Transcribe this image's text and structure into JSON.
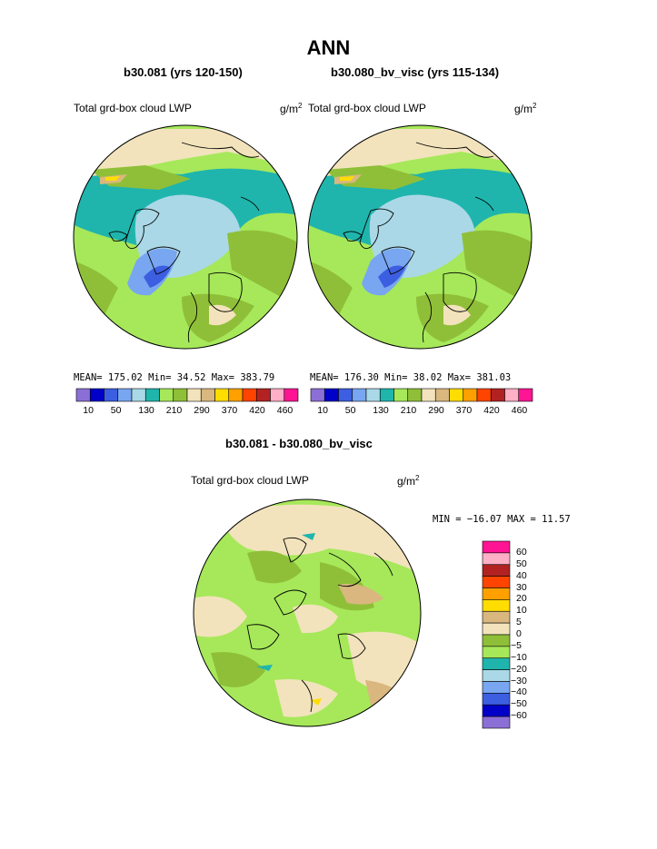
{
  "figure": {
    "title": "ANN",
    "variable_label": "Total grd-box cloud LWP",
    "units_base": "g/m",
    "units_exp": "2",
    "diff_title": "b30.081 - b30.080_bv_visc"
  },
  "panels": [
    {
      "subtitle": "b30.081 (yrs 120-150)",
      "stats": "MEAN= 175.02  Min=  34.52  Max= 383.79"
    },
    {
      "subtitle": "b30.080_bv_visc (yrs 115-134)",
      "stats": "MEAN= 176.30  Min=  38.02  Max= 381.03"
    }
  ],
  "top_colorbar": {
    "colors": [
      "#8c6fd6",
      "#0000c8",
      "#3c5ee0",
      "#78a6f0",
      "#aad8e6",
      "#1fb5ad",
      "#a6e85a",
      "#8fbf38",
      "#f2e3bc",
      "#d9b77e",
      "#ffdd00",
      "#ffa000",
      "#ff4400",
      "#b22222",
      "#ffafc6",
      "#ff1493"
    ],
    "ticks": [
      "10",
      "50",
      "130",
      "210",
      "290",
      "370",
      "420",
      "460"
    ]
  },
  "diff": {
    "minmax_text": "MIN = −16.07 MAX =  11.57",
    "colors": [
      "#ff1493",
      "#ffafc6",
      "#b22222",
      "#ff4400",
      "#ffa000",
      "#ffdd00",
      "#d9b77e",
      "#f2e3bc",
      "#8fbf38",
      "#a6e85a",
      "#1fb5ad",
      "#aad8e6",
      "#78a6f0",
      "#3c5ee0",
      "#0000c8",
      "#8c6fd6"
    ],
    "labels": [
      "60",
      "50",
      "40",
      "30",
      "20",
      "10",
      "5",
      "0",
      "−5",
      "−10",
      "−20",
      "−30",
      "−40",
      "−50",
      "−60"
    ]
  }
}
